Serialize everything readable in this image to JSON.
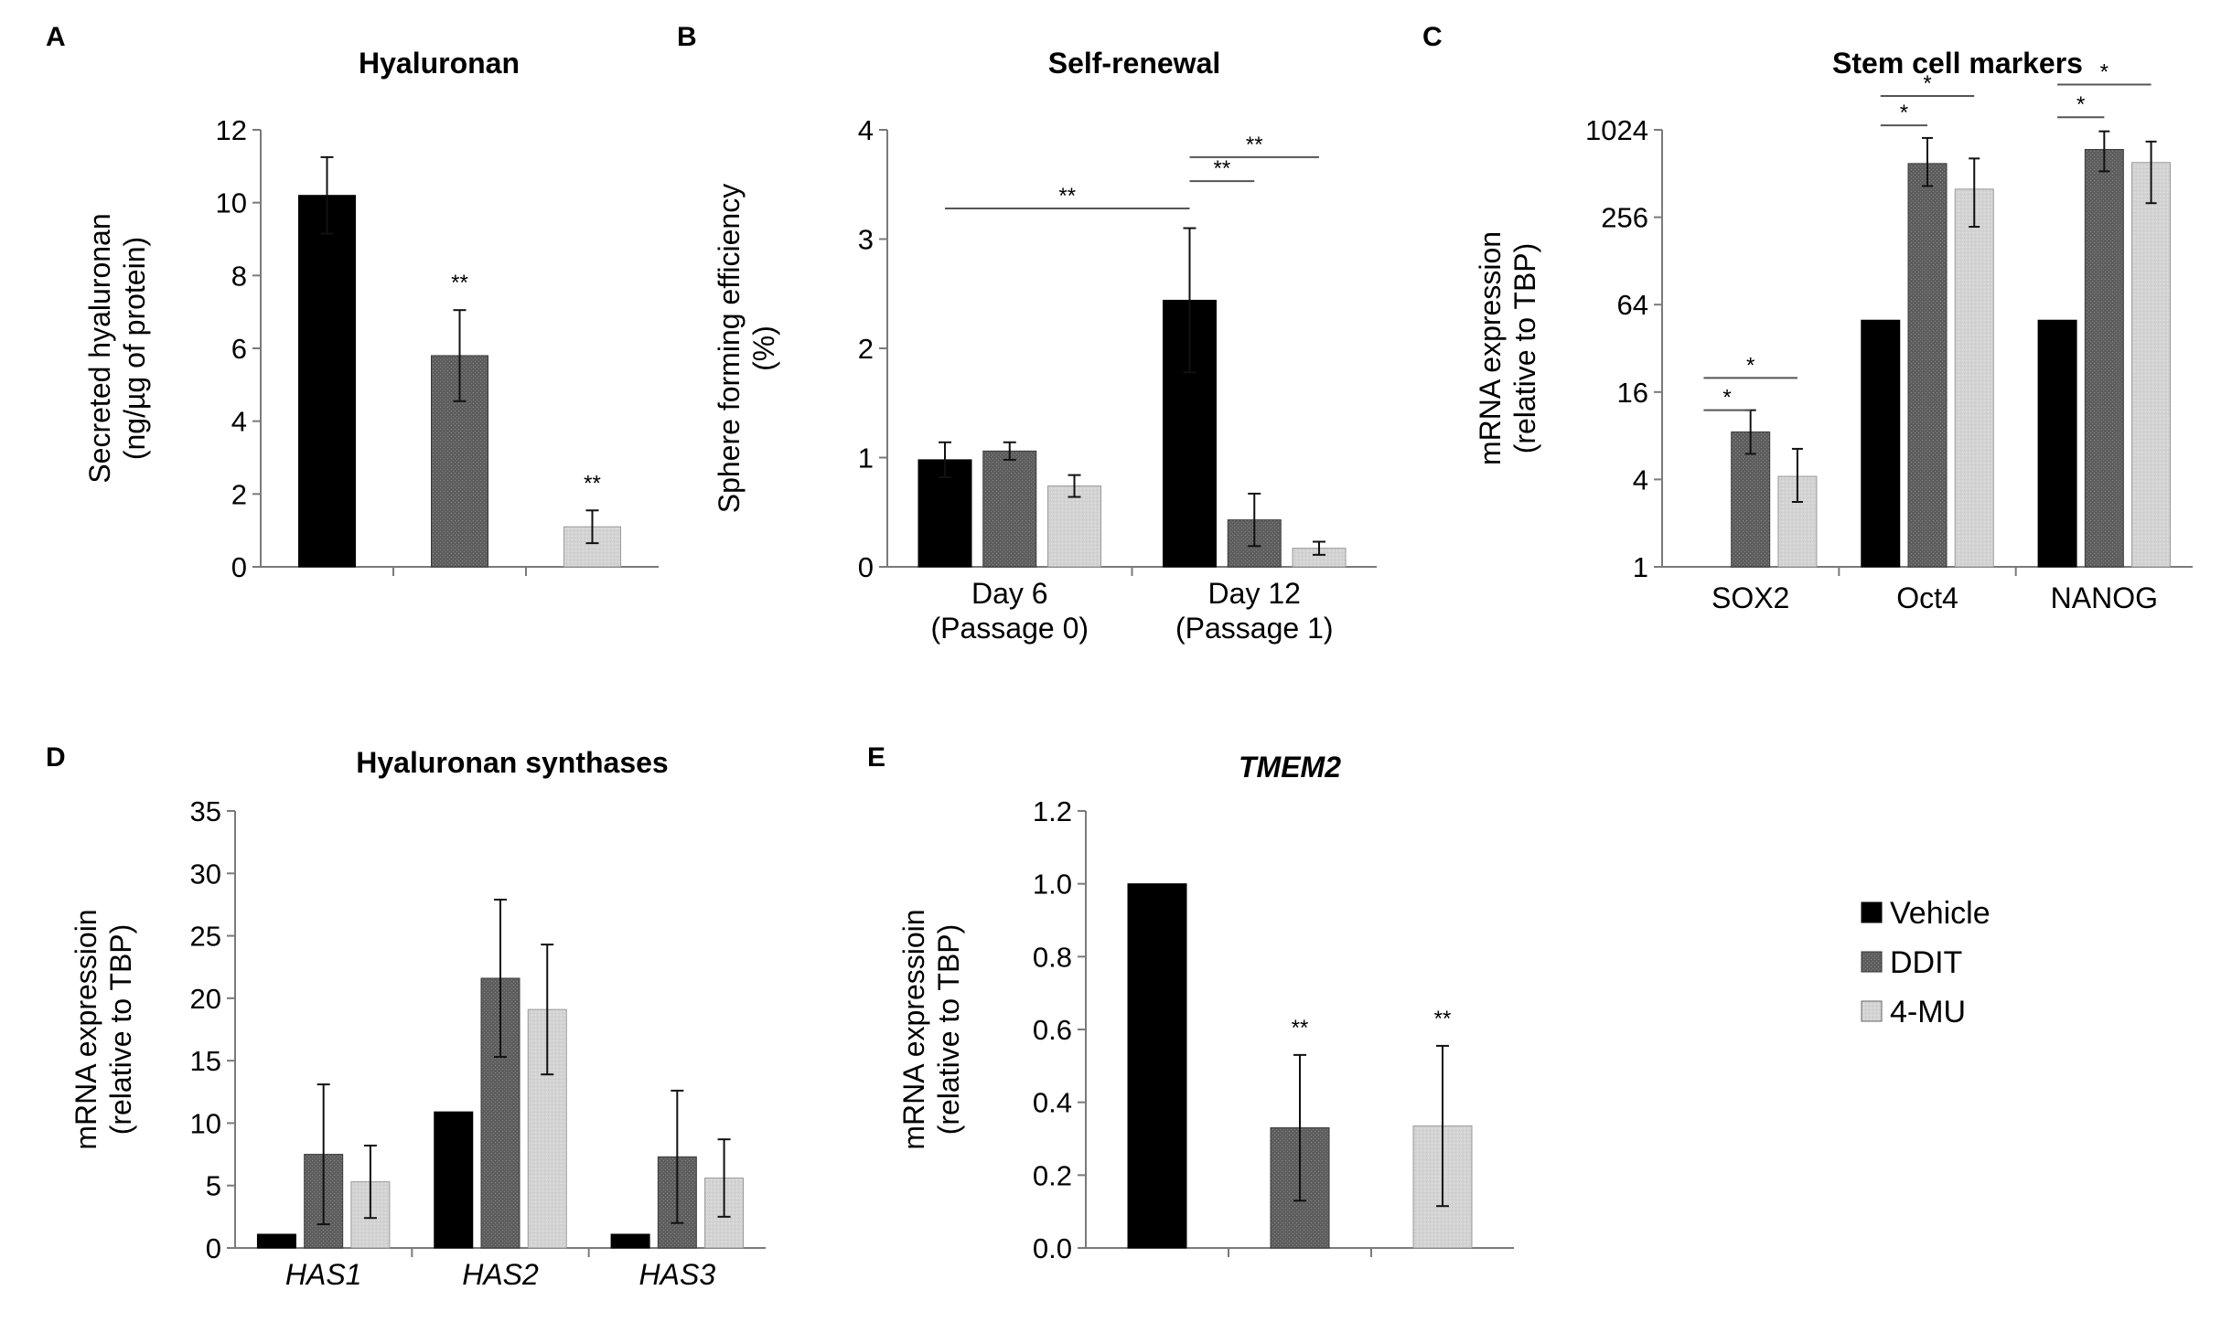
{
  "legend": {
    "entries": [
      {
        "label": "Vehicle",
        "color": "#000000"
      },
      {
        "label": "DDIT",
        "color": "#606060"
      },
      {
        "label": "4-MU",
        "color": "#d3d3d3"
      }
    ]
  },
  "chart_data": [
    {
      "panel": "A",
      "type": "bar",
      "title": "Hyaluronan",
      "ylabel": [
        "Secreted hyaluronan",
        "(ng/µg of protein)"
      ],
      "ylim": [
        0,
        12
      ],
      "yticks": [
        0,
        2,
        4,
        6,
        8,
        10,
        12
      ],
      "categories": [
        "Vehicle",
        "DDIT",
        "4-MU"
      ],
      "values": [
        10.2,
        5.8,
        1.1
      ],
      "errors": [
        1.05,
        1.25,
        0.45
      ],
      "annotations": [
        "",
        "**",
        "**"
      ]
    },
    {
      "panel": "B",
      "type": "bar",
      "title": "Self-renewal",
      "ylabel": [
        "Sphere forming efficiency",
        "(%)"
      ],
      "ylim": [
        0,
        4
      ],
      "yticks": [
        0,
        1,
        2,
        3,
        4
      ],
      "categories": [
        [
          "Day 6",
          "(Passage 0)"
        ],
        [
          "Day 12",
          "(Passage 1)"
        ]
      ],
      "series": [
        {
          "name": "Vehicle",
          "values": [
            0.98,
            2.44
          ],
          "errors": [
            0.16,
            0.66
          ]
        },
        {
          "name": "DDIT",
          "values": [
            1.06,
            0.43
          ],
          "errors": [
            0.08,
            0.24
          ]
        },
        {
          "name": "4-MU",
          "values": [
            0.74,
            0.17
          ],
          "errors": [
            0.1,
            0.06
          ]
        }
      ],
      "brackets": [
        {
          "label": "**",
          "from": [
            0,
            0
          ],
          "to": [
            1,
            0
          ],
          "level": 3.28
        },
        {
          "label": "**",
          "from": [
            1,
            0
          ],
          "to": [
            1,
            1
          ],
          "level": 3.53
        },
        {
          "label": "**",
          "from": [
            1,
            0
          ],
          "to": [
            1,
            2
          ],
          "level": 3.75
        }
      ]
    },
    {
      "panel": "C",
      "type": "bar",
      "title": "Stem cell markers",
      "yscale": "log2",
      "ylabel": [
        "mRNA expression",
        "(relative to TBP)"
      ],
      "ylim": [
        1,
        1024
      ],
      "yticks": [
        1,
        4,
        16,
        64,
        256,
        1024
      ],
      "categories": [
        "SOX2",
        "Oct4",
        "NANOG"
      ],
      "series": [
        {
          "name": "Vehicle",
          "values": [
            1,
            50,
            50
          ],
          "errors": [
            [
              1,
              1
            ],
            [
              50,
              50
            ],
            [
              50,
              50
            ]
          ]
        },
        {
          "name": "DDIT",
          "values": [
            8.5,
            600,
            750
          ],
          "errors": [
            [
              6,
              12
            ],
            [
              420,
              900
            ],
            [
              530,
              1000
            ]
          ]
        },
        {
          "name": "4-MU",
          "values": [
            4.2,
            400,
            610
          ],
          "errors": [
            [
              2.8,
              6.5
            ],
            [
              220,
              650
            ],
            [
              320,
              850
            ]
          ]
        }
      ],
      "brackets": [
        {
          "label": "*",
          "from": [
            0,
            0
          ],
          "to": [
            0,
            1
          ],
          "level": 12
        },
        {
          "label": "*",
          "from": [
            0,
            0
          ],
          "to": [
            0,
            2
          ],
          "level": 20
        },
        {
          "label": "*",
          "from": [
            1,
            0
          ],
          "to": [
            1,
            1
          ],
          "level": 1100
        },
        {
          "label": "*",
          "from": [
            1,
            0
          ],
          "to": [
            1,
            2
          ],
          "level": 1750
        },
        {
          "label": "*",
          "from": [
            2,
            0
          ],
          "to": [
            2,
            1
          ],
          "level": 1250
        },
        {
          "label": "*",
          "from": [
            2,
            0
          ],
          "to": [
            2,
            2
          ],
          "level": 2100
        }
      ]
    },
    {
      "panel": "D",
      "type": "bar",
      "title": "Hyaluronan synthases",
      "ylabel": [
        "mRNA expressioin",
        "(relative to TBP)"
      ],
      "ylim": [
        0,
        35
      ],
      "yticks": [
        0,
        5,
        10,
        15,
        20,
        25,
        30,
        35
      ],
      "categories": [
        "HAS1",
        "HAS2",
        "HAS3"
      ],
      "category_style": "italic",
      "series": [
        {
          "name": "Vehicle",
          "values": [
            1.1,
            10.9,
            1.1
          ],
          "errors": [
            0,
            0,
            0
          ]
        },
        {
          "name": "DDIT",
          "values": [
            7.5,
            21.6,
            7.3
          ],
          "errors": [
            5.6,
            6.3,
            5.3
          ]
        },
        {
          "name": "4-MU",
          "values": [
            5.3,
            19.1,
            5.6
          ],
          "errors": [
            2.9,
            5.2,
            3.1
          ]
        }
      ]
    },
    {
      "panel": "E",
      "type": "bar",
      "title": "TMEM2",
      "title_style": "italic",
      "ylabel": [
        "mRNA expressioin",
        "(relative to TBP)"
      ],
      "ylim": [
        0,
        1.2
      ],
      "yticks": [
        "0.0",
        "0.2",
        "0.4",
        "0.6",
        "0.8",
        "1.0",
        "1.2"
      ],
      "categories": [
        "Vehicle",
        "DDIT",
        "4-MU"
      ],
      "values": [
        1.0,
        0.33,
        0.335
      ],
      "errors": [
        0,
        0.2,
        0.22
      ],
      "annotations": [
        "",
        "**",
        "**"
      ]
    }
  ]
}
